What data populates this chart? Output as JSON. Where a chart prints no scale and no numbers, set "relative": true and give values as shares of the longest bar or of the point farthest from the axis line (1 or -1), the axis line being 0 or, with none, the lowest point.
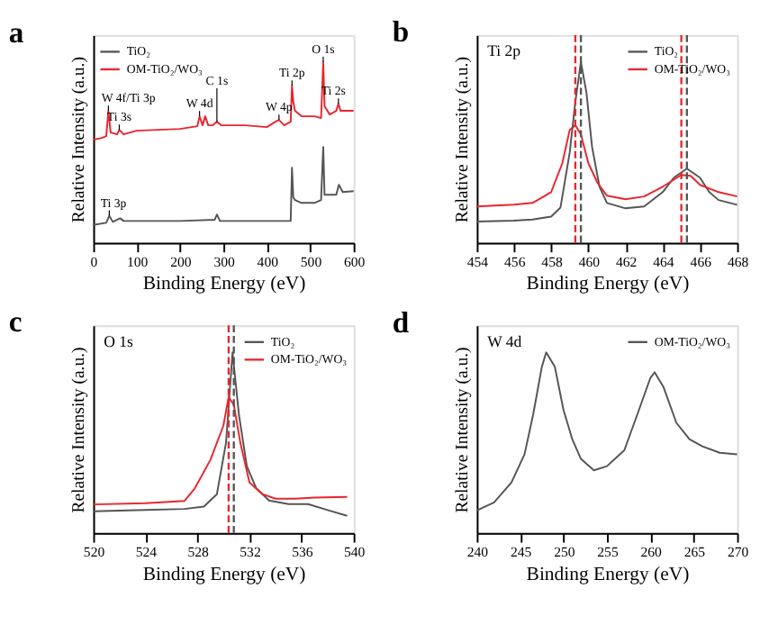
{
  "chart_data": [
    {
      "type": "line",
      "title": "a",
      "xlabel": "Binding Energy (eV)",
      "ylabel": "Relative Intensity (a.u.)",
      "relative": true,
      "xlim": [
        0,
        600
      ],
      "xticks": [
        0,
        100,
        200,
        300,
        400,
        500,
        600
      ],
      "grid": false,
      "legend": "top left",
      "marker": "none",
      "series": [
        {
          "name": "TiO₂",
          "color": "#555555",
          "x": [
            0,
            30,
            37,
            45,
            62,
            70,
            200,
            280,
            285,
            292,
            400,
            455,
            458,
            461,
            465,
            480,
            510,
            525,
            530,
            533,
            545,
            560,
            566,
            575,
            600
          ],
          "values": [
            0.098,
            0.11,
            0.15,
            0.115,
            0.135,
            0.12,
            0.12,
            0.127,
            0.156,
            0.12,
            0.12,
            0.12,
            0.415,
            0.25,
            0.236,
            0.22,
            0.22,
            0.236,
            0.53,
            0.265,
            0.265,
            0.265,
            0.32,
            0.28,
            0.285
          ]
        },
        {
          "name": "OM-TiO₂/WO₃",
          "color": "#e8262f",
          "x": [
            0,
            20,
            30,
            35,
            40,
            55,
            60,
            70,
            100,
            200,
            240,
            245,
            252,
            258,
            265,
            275,
            285,
            295,
            350,
            400,
            420,
            428,
            440,
            455,
            458,
            461,
            465,
            480,
            510,
            525,
            530,
            533,
            545,
            560,
            565,
            570,
            600
          ],
          "values": [
            0.57,
            0.58,
            0.59,
            0.73,
            0.61,
            0.6,
            0.625,
            0.6,
            0.62,
            0.63,
            0.645,
            0.7,
            0.65,
            0.7,
            0.65,
            0.65,
            0.67,
            0.65,
            0.65,
            0.64,
            0.67,
            0.68,
            0.65,
            0.67,
            0.87,
            0.78,
            0.73,
            0.7,
            0.7,
            0.69,
            1.0,
            0.755,
            0.71,
            0.73,
            0.77,
            0.73,
            0.73
          ]
        }
      ],
      "annotations": [
        {
          "text": "W 4f/Ti 3p",
          "x": 35,
          "y": 0.73
        },
        {
          "text": "Ti 3s",
          "x": 60,
          "y": 0.625
        },
        {
          "text": "W 4d",
          "x": 245,
          "y": 0.7
        },
        {
          "text": "C 1s",
          "x": 285,
          "y": 0.67
        },
        {
          "text": "W 4p",
          "x": 428,
          "y": 0.68
        },
        {
          "text": "Ti 2p",
          "x": 458,
          "y": 0.87
        },
        {
          "text": "O 1s",
          "x": 530,
          "y": 1.0
        },
        {
          "text": "Ti 2s",
          "x": 565,
          "y": 0.77
        },
        {
          "text": "Ti 3p",
          "x": 37,
          "y": 0.15
        }
      ]
    },
    {
      "type": "line",
      "title": "b",
      "xlabel": "Binding Energy (eV)",
      "ylabel": "Relative Intensity (a.u.)",
      "relative": true,
      "xlim": [
        454,
        468
      ],
      "xticks": [
        454,
        456,
        458,
        460,
        462,
        464,
        466,
        468
      ],
      "grid": false,
      "legend": "top right",
      "marker": "none",
      "series": [
        {
          "name": "TiO₂",
          "color": "#555555",
          "x": [
            454,
            456,
            457,
            458,
            458.5,
            459,
            459.3,
            459.6,
            459.9,
            460.2,
            460.6,
            461,
            462,
            463,
            464,
            464.6,
            465.3,
            466,
            466.5,
            467,
            468
          ],
          "values": [
            0.117,
            0.122,
            0.128,
            0.144,
            0.194,
            0.5,
            0.78,
            1.0,
            0.83,
            0.53,
            0.31,
            0.22,
            0.19,
            0.2,
            0.28,
            0.36,
            0.41,
            0.36,
            0.28,
            0.236,
            0.21
          ]
        },
        {
          "name": "OM-TiO₂/WO₃",
          "color": "#e8262f",
          "x": [
            454,
            456,
            457,
            458,
            458.6,
            459,
            459.3,
            459.6,
            460,
            460.5,
            461,
            462,
            463,
            464,
            465,
            465.5,
            466,
            467,
            468
          ],
          "values": [
            0.2,
            0.21,
            0.22,
            0.28,
            0.44,
            0.625,
            0.65,
            0.6,
            0.44,
            0.33,
            0.26,
            0.24,
            0.256,
            0.31,
            0.375,
            0.37,
            0.32,
            0.28,
            0.256
          ]
        }
      ],
      "annotations": [
        "Ti 2p"
      ],
      "ref_lines": [
        {
          "axis": "x",
          "value": 459.3,
          "color": "#e8262f",
          "line_style": "dashed"
        },
        {
          "axis": "x",
          "value": 465.0,
          "color": "#e8262f",
          "line_style": "dashed"
        },
        {
          "axis": "x",
          "value": 459.6,
          "color": "#555555",
          "line_style": "dashed"
        },
        {
          "axis": "x",
          "value": 465.3,
          "color": "#555555",
          "line_style": "dashed"
        }
      ]
    },
    {
      "type": "line",
      "title": "c",
      "xlabel": "Binding Energy (eV)",
      "ylabel": "Relative Intensity (a.u.)",
      "relative": true,
      "xlim": [
        520,
        540
      ],
      "xticks": [
        520,
        524,
        528,
        532,
        536,
        540
      ],
      "grid": false,
      "legend": "top right",
      "marker": "none",
      "series": [
        {
          "name": "TiO₂",
          "color": "#555555",
          "x": [
            520,
            524,
            527,
            528.5,
            529.5,
            530.2,
            530.7,
            531.2,
            531.8,
            532.5,
            533.5,
            535,
            536.5,
            538,
            539.5
          ],
          "values": [
            0.12,
            0.127,
            0.133,
            0.146,
            0.215,
            0.5,
            1.0,
            0.65,
            0.37,
            0.25,
            0.18,
            0.16,
            0.16,
            0.127,
            0.095
          ]
        },
        {
          "name": "OM-TiO₂/WO₃",
          "color": "#e8262f",
          "x": [
            520,
            524,
            527,
            527.8,
            529,
            530,
            530.4,
            530.8,
            531.3,
            532,
            533,
            534,
            535.5,
            537,
            539.5
          ],
          "values": [
            0.158,
            0.165,
            0.177,
            0.247,
            0.405,
            0.595,
            0.753,
            0.71,
            0.5,
            0.28,
            0.215,
            0.19,
            0.19,
            0.196,
            0.2
          ]
        }
      ],
      "annotations": [
        "O 1s"
      ],
      "ref_lines": [
        {
          "axis": "x",
          "value": 530.4,
          "color": "#e8262f",
          "line_style": "dashed"
        },
        {
          "axis": "x",
          "value": 530.8,
          "color": "#555555",
          "line_style": "dashed"
        }
      ]
    },
    {
      "type": "line",
      "title": "d",
      "xlabel": "Binding Energy (eV)",
      "ylabel": "Relative Intensity (a.u.)",
      "relative": true,
      "xlim": [
        240,
        270
      ],
      "xticks": [
        240,
        245,
        250,
        255,
        260,
        265,
        270
      ],
      "grid": false,
      "legend": "top right",
      "marker": "none",
      "series": [
        {
          "name": "OM-TiO₂/WO₃",
          "color": "#555555",
          "x": [
            240,
            242,
            244,
            245.5,
            246.5,
            247.5,
            248,
            249,
            250,
            251,
            252,
            253.5,
            255,
            257,
            258.5,
            260,
            260.5,
            261.5,
            263,
            264.5,
            266,
            268,
            270
          ],
          "values": [
            0.124,
            0.169,
            0.28,
            0.435,
            0.656,
            0.92,
            1.0,
            0.92,
            0.68,
            0.52,
            0.41,
            0.347,
            0.37,
            0.458,
            0.656,
            0.858,
            0.89,
            0.81,
            0.61,
            0.52,
            0.48,
            0.444,
            0.435
          ]
        }
      ],
      "annotations": [
        "W 4d"
      ]
    }
  ]
}
